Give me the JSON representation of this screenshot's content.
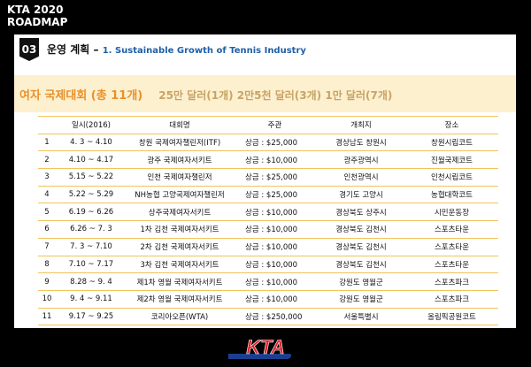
{
  "header": {
    "line1": "KTA 2020",
    "line2": "ROADMAP"
  },
  "section": {
    "number": "03",
    "title": "운영 계획",
    "dash": " – ",
    "subtitle": "1. Sustainable Growth of Tennis Industry"
  },
  "band": {
    "title": "여자 국제대회 (총 11개)",
    "detail": "25만 달러(1개) 2만5천 달러(3개) 1만 달러(7개)"
  },
  "table": {
    "columns": [
      "",
      "일시(2016)",
      "대회명",
      "주관",
      "개최지",
      "장소"
    ],
    "rows": [
      {
        "no": "1",
        "date": "4. 3 ~ 4.10",
        "name": "창원 국제여자챌린저(ITF)",
        "prize": "상금 : $25,000",
        "host": "경상남도 창원시",
        "venue": "창원시립코트"
      },
      {
        "no": "2",
        "date": "4.10 ~ 4.17",
        "name": "광주 국제여자서키트",
        "prize": "상금 : $10,000",
        "host": "광주광역시",
        "venue": "진월국제코트"
      },
      {
        "no": "3",
        "date": "5.15 ~ 5.22",
        "name": "인천 국제여자챌린저",
        "prize": "상금 : $25,000",
        "host": "인천광역시",
        "venue": "인천시립코트"
      },
      {
        "no": "4",
        "date": "5.22 ~ 5.29",
        "name": "NH농협 고양국제여자챌린저",
        "prize": "상금 : $25,000",
        "host": "경기도 고양시",
        "venue": "농협대학코트"
      },
      {
        "no": "5",
        "date": "6.19 ~ 6.26",
        "name": "상주국제여자서키트",
        "prize": "상금 : $10,000",
        "host": "경상북도 상주시",
        "venue": "시민운동장"
      },
      {
        "no": "6",
        "date": "6.26 ~ 7. 3",
        "name": "1차 김천 국제여자서키트",
        "prize": "상금 : $10,000",
        "host": "경상북도 김천시",
        "venue": "스포츠타운"
      },
      {
        "no": "7",
        "date": "7. 3 ~ 7.10",
        "name": "2차 김천 국제여자서키트",
        "prize": "상금 : $10,000",
        "host": "경상북도 김천시",
        "venue": "스포츠타운"
      },
      {
        "no": "8",
        "date": "7.10 ~ 7.17",
        "name": "3차 김천 국제여자서키트",
        "prize": "상금 : $10,000",
        "host": "경상북도 김천시",
        "venue": "스포츠타운"
      },
      {
        "no": "9",
        "date": "8.28 ~ 9. 4",
        "name": "제1차 영월 국제여자서키트",
        "prize": "상금 : $10,000",
        "host": "강원도 영월군",
        "venue": "스포츠파크"
      },
      {
        "no": "10",
        "date": "9. 4 ~ 9.11",
        "name": "제2차 영월 국제여자서키트",
        "prize": "상금 : $10,000",
        "host": "강원도 영월군",
        "venue": "스포츠파크"
      },
      {
        "no": "11",
        "date": "9.17 ~ 9.25",
        "name": "코리아오픈(WTA)",
        "prize": "상금 : $250,000",
        "host": "서울특별시",
        "venue": "올림픽공원코트"
      }
    ]
  },
  "logo": {
    "text": "KTA",
    "colors": {
      "red": "#e0242b",
      "blue": "#1b3f8f"
    }
  }
}
